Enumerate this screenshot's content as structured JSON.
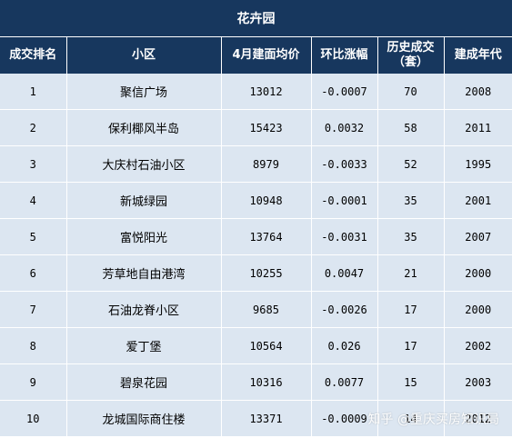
{
  "title": "花卉园",
  "headers": [
    "成交排名",
    "小区",
    "4月建面均价",
    "环比涨幅",
    "历史成交（套）",
    "建成年代"
  ],
  "rows": [
    [
      "1",
      "聚信广场",
      "13012",
      "-0.0007",
      "70",
      "2008"
    ],
    [
      "2",
      "保利椰风半岛",
      "15423",
      "0.0032",
      "58",
      "2011"
    ],
    [
      "3",
      "大庆村石油小区",
      "8979",
      "-0.0033",
      "52",
      "1995"
    ],
    [
      "4",
      "新城绿园",
      "10948",
      "-0.0001",
      "35",
      "2001"
    ],
    [
      "5",
      "富悦阳光",
      "13764",
      "-0.0031",
      "35",
      "2007"
    ],
    [
      "6",
      "芳草地自由港湾",
      "10255",
      "0.0047",
      "21",
      "2000"
    ],
    [
      "7",
      "石油龙脊小区",
      "9685",
      "-0.0026",
      "17",
      "2000"
    ],
    [
      "8",
      "爱丁堡",
      "10564",
      "0.026",
      "17",
      "2002"
    ],
    [
      "9",
      "碧泉花园",
      "10316",
      "0.0077",
      "15",
      "2003"
    ],
    [
      "10",
      "龙城国际商住楼",
      "13371",
      "-0.0009",
      "14",
      "2012"
    ]
  ],
  "watermark": "知乎 @重庆买房知识局",
  "colors": {
    "header_bg": "#17375e",
    "row_bg": "#dce6f1",
    "header_text": "#ffffff"
  }
}
